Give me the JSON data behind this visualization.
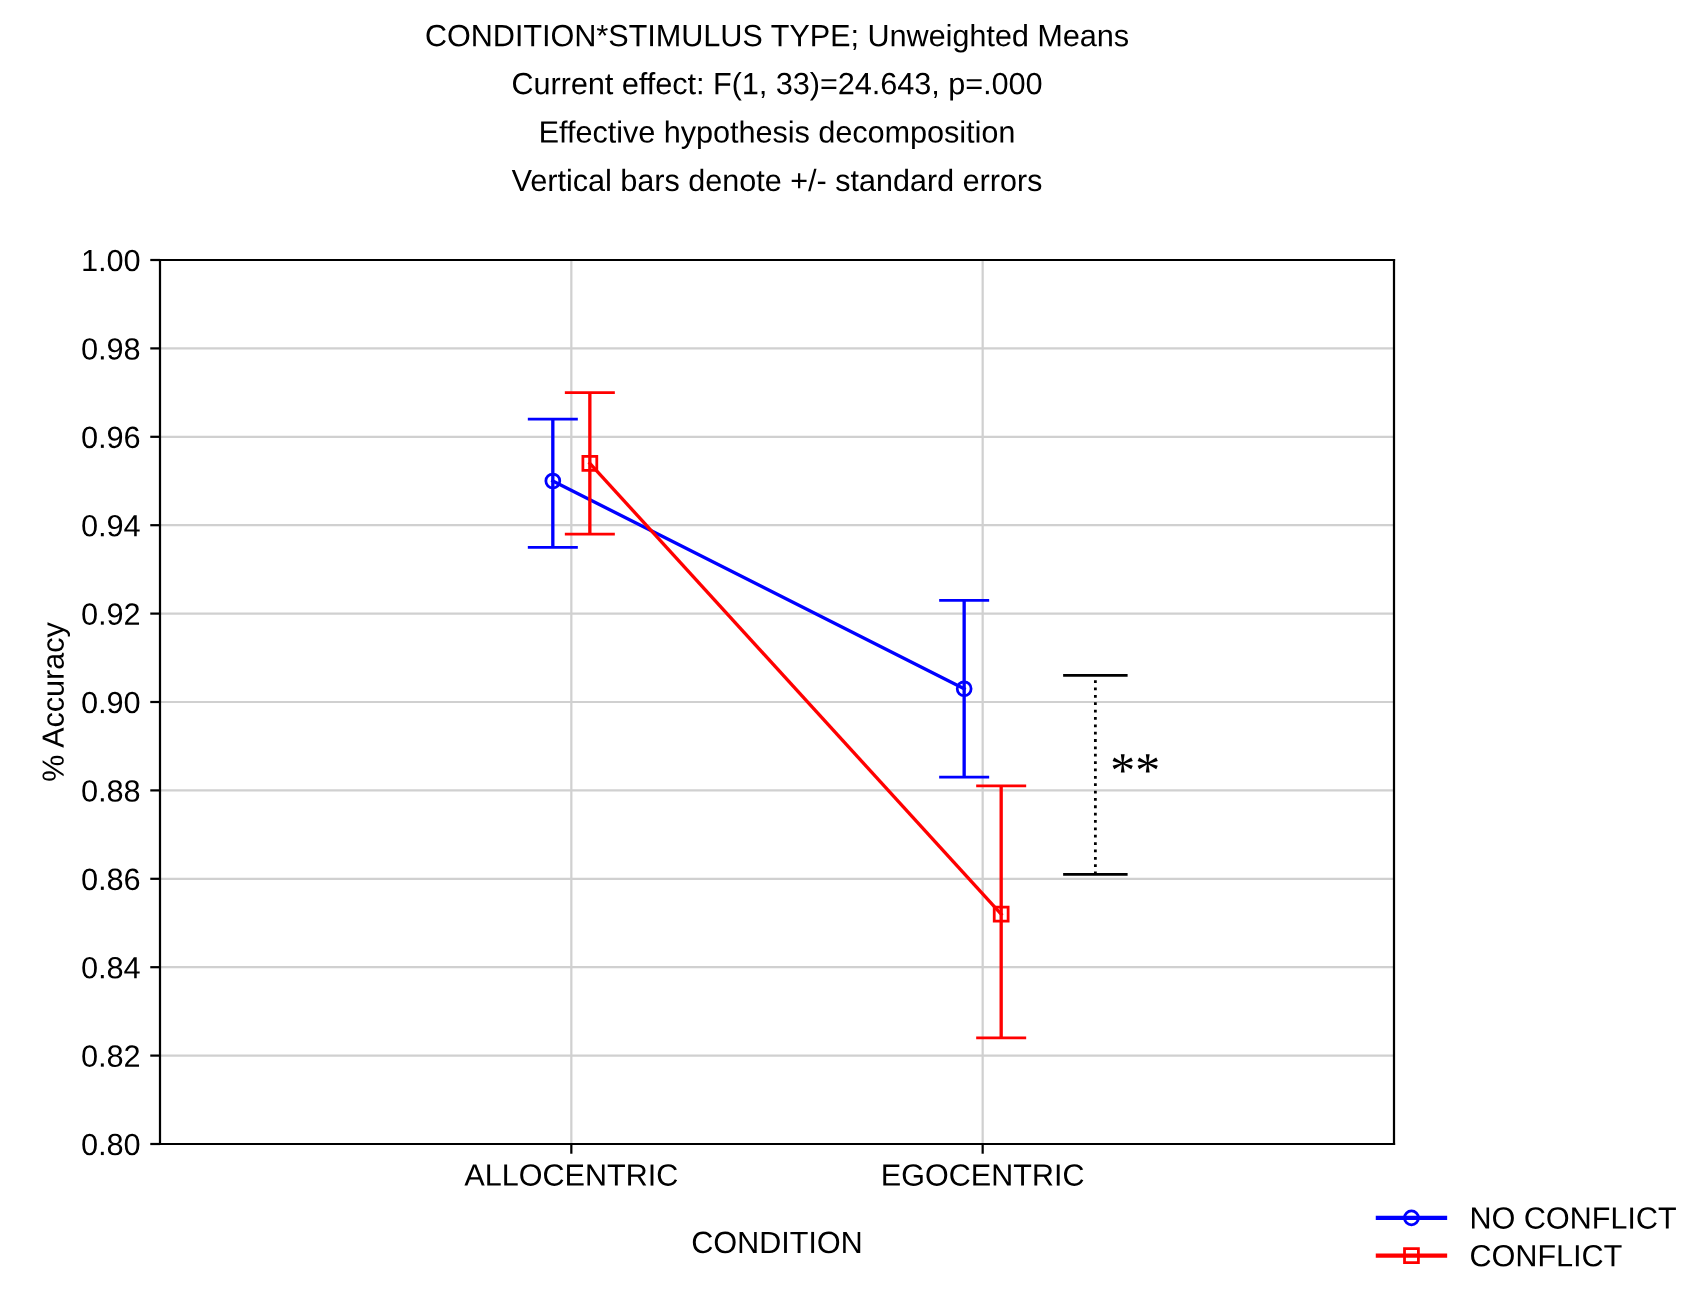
{
  "chart_data": {
    "type": "line",
    "title": "CONDITION*STIMULUS TYPE; Unweighted Means",
    "subtitle": "Current effect: F(1, 33)=24.643, p=.000\nEffective hypothesis decomposition\nVertical bars denote +/- standard errors",
    "xlabel": "CONDITION",
    "ylabel": "% Accuracy",
    "categories": [
      "ALLOCENTRIC",
      "EGOCENTRIC"
    ],
    "series": [
      {
        "name": "NO CONFLICT",
        "color": "#0000ff",
        "marker": "circle",
        "values": [
          0.95,
          0.903
        ],
        "errors": [
          [
            0.935,
            0.964
          ],
          [
            0.883,
            0.923
          ]
        ]
      },
      {
        "name": "CONFLICT",
        "color": "#ff0000",
        "marker": "square",
        "values": [
          0.954,
          0.852
        ],
        "errors": [
          [
            0.938,
            0.97
          ],
          [
            0.824,
            0.881
          ]
        ]
      }
    ],
    "ylim": [
      0.8,
      1.0
    ],
    "yticks": [
      {
        "value": 0.8,
        "label": "0.80"
      },
      0.82,
      0.84,
      0.86,
      0.88,
      {
        "value": 0.9,
        "label": "0.90"
      },
      0.92,
      0.94,
      0.96,
      0.98,
      {
        "value": 1.0,
        "label": "1.00"
      }
    ],
    "grid": true,
    "legend": "bottom right",
    "annotations": [
      "**"
    ]
  }
}
